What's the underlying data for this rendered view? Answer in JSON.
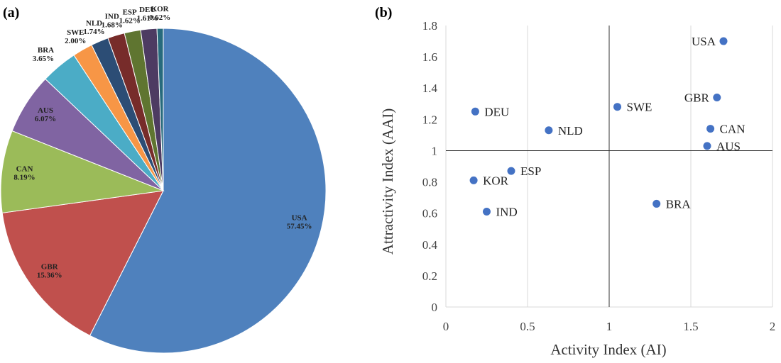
{
  "panels": {
    "a_label": "(a)",
    "b_label": "(b)"
  },
  "chart_data": [
    {
      "type": "pie",
      "panel": "(a)",
      "categories": [
        "USA",
        "GBR",
        "CAN",
        "AUS",
        "BRA",
        "SWE",
        "NLD",
        "IND",
        "ESP",
        "DEU",
        "KOR"
      ],
      "values": [
        57.45,
        15.36,
        8.19,
        6.07,
        3.65,
        2.0,
        1.74,
        1.68,
        1.62,
        1.61,
        0.62
      ],
      "value_labels": [
        "57.45%",
        "15.36%",
        "8.19%",
        "6.07%",
        "3.65%",
        "2.00%",
        "1.74%",
        "1.68%",
        "1.62%",
        "1.61%",
        "0.62%"
      ],
      "colors": [
        "#4f81bd",
        "#c0504d",
        "#9bbb59",
        "#8064a2",
        "#4bacc6",
        "#f79646",
        "#2c4d75",
        "#772c2a",
        "#5f7530",
        "#4d3b62",
        "#276a7c"
      ],
      "start": "12 o'clock, clockwise"
    },
    {
      "type": "scatter",
      "panel": "(b)",
      "xlabel": "Activity Index (AI)",
      "ylabel": "Attractivity Index (AAI)",
      "xlim": [
        0,
        2
      ],
      "ylim": [
        0,
        1.8
      ],
      "xticks": [
        0,
        0.5,
        1,
        1.5,
        2
      ],
      "xtick_labels": [
        "0",
        "0.5",
        "1",
        "1.5",
        "2"
      ],
      "yticks": [
        0,
        0.2,
        0.4,
        0.6,
        0.8,
        1,
        1.2,
        1.4,
        1.6,
        1.8
      ],
      "ytick_labels": [
        "0",
        "0.2",
        "0.4",
        "0.6",
        "0.8",
        "1",
        "1.2",
        "1.4",
        "1.6",
        "1.8"
      ],
      "reference_lines": {
        "x": 1,
        "y": 1
      },
      "grid": "vertical",
      "point_color": "#4472c4",
      "points": [
        {
          "label": "USA",
          "x": 1.7,
          "y": 1.7,
          "label_side": "left"
        },
        {
          "label": "GBR",
          "x": 1.66,
          "y": 1.34,
          "label_side": "left"
        },
        {
          "label": "CAN",
          "x": 1.62,
          "y": 1.14,
          "label_side": "right"
        },
        {
          "label": "AUS",
          "x": 1.6,
          "y": 1.03,
          "label_side": "right"
        },
        {
          "label": "SWE",
          "x": 1.05,
          "y": 1.28,
          "label_side": "right"
        },
        {
          "label": "BRA",
          "x": 1.29,
          "y": 0.66,
          "label_side": "right"
        },
        {
          "label": "DEU",
          "x": 0.18,
          "y": 1.25,
          "label_side": "right"
        },
        {
          "label": "NLD",
          "x": 0.63,
          "y": 1.13,
          "label_side": "right"
        },
        {
          "label": "ESP",
          "x": 0.4,
          "y": 0.87,
          "label_side": "right"
        },
        {
          "label": "KOR",
          "x": 0.17,
          "y": 0.81,
          "label_side": "right"
        },
        {
          "label": "IND",
          "x": 0.25,
          "y": 0.61,
          "label_side": "right"
        }
      ]
    }
  ]
}
